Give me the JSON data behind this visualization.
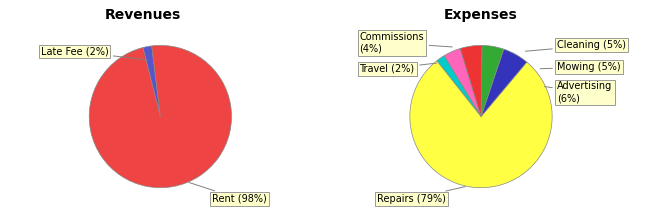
{
  "revenues": {
    "title": "Revenues",
    "labels": [
      "Late Fee (2%)",
      "Rent (98%)"
    ],
    "sizes": [
      2,
      98
    ],
    "colors": [
      "#5555cc",
      "#ee4444"
    ],
    "startangle": 97
  },
  "expenses": {
    "title": "Expenses",
    "labels": [
      "Commissions\n(4%)",
      "Travel (2%)",
      "Repairs (79%)",
      "Advertising\n(6%)",
      "Mowing (5%)",
      "Cleaning (5%)"
    ],
    "sizes": [
      4,
      2,
      79,
      6,
      5,
      5
    ],
    "colors": [
      "#ff66bb",
      "#00cccc",
      "#ffff44",
      "#3333bb",
      "#33aa33",
      "#ee3333"
    ],
    "startangle": 107
  },
  "bg_color": "#ffffff",
  "label_box_color": "#ffffcc",
  "label_box_edge": "#999999",
  "title_fontsize": 10,
  "label_fontsize": 7
}
